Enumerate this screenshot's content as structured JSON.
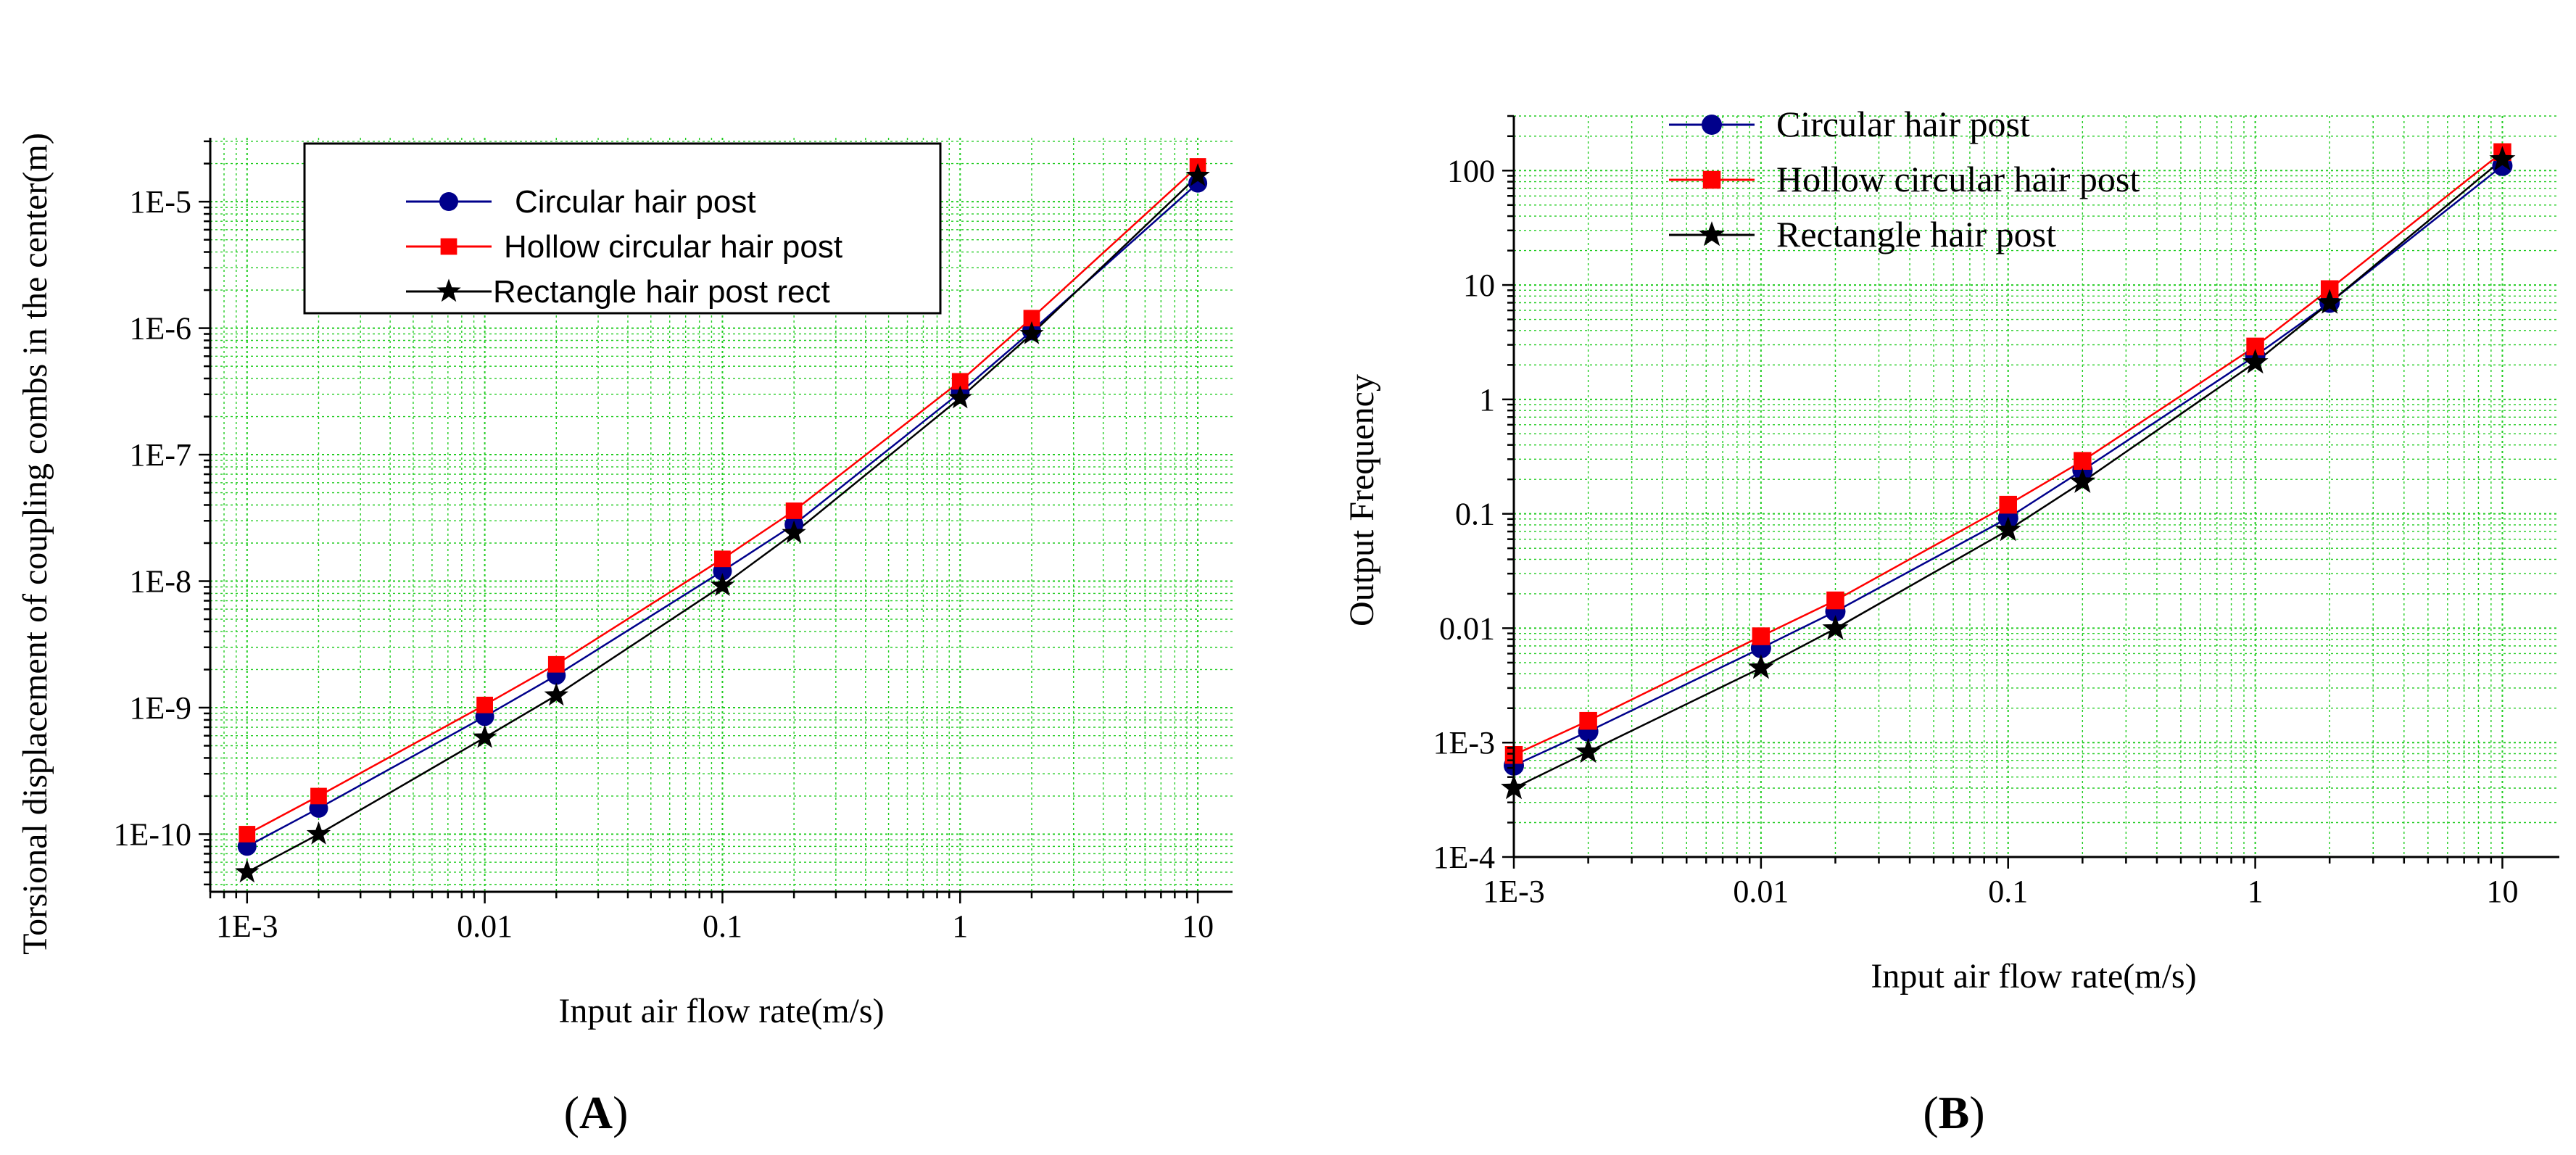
{
  "chart_data": [
    {
      "id": "A",
      "type": "line",
      "panel_label": "A",
      "xscale": "log",
      "yscale": "log",
      "xlabel": "Input air flow rate(m/s)",
      "ylabel": "Torsional displacement of coupling combs in the center(m)",
      "xlim": [
        0.0007,
        14
      ],
      "ylim": [
        3.5e-11,
        3.2e-05
      ],
      "grid": true,
      "legend_position": "top-left",
      "xticks": [
        0.001,
        0.01,
        0.1,
        1,
        10
      ],
      "xtick_labels": [
        "1E-3",
        "0.01",
        "0.1",
        "1",
        "10"
      ],
      "yticks": [
        1e-10,
        1e-09,
        1e-08,
        1e-07,
        1e-06,
        1e-05
      ],
      "ytick_labels": [
        "1E-10",
        "1E-9",
        "1E-8",
        "1E-7",
        "1E-6",
        "1E-5"
      ],
      "x": [
        0.001,
        0.002,
        0.01,
        0.02,
        0.1,
        0.2,
        1,
        2,
        10
      ],
      "series": [
        {
          "name": "Circular hair post",
          "color": "#00008b",
          "marker": "circle",
          "values": [
            8e-11,
            1.6e-10,
            8.5e-10,
            1.8e-09,
            1.2e-08,
            2.8e-08,
            3.1e-07,
            9.5e-07,
            1.4e-05
          ]
        },
        {
          "name": "Hollow circular hair post",
          "color": "#ff0000",
          "marker": "square",
          "values": [
            1e-10,
            2e-10,
            1.05e-09,
            2.2e-09,
            1.5e-08,
            3.6e-08,
            3.8e-07,
            1.2e-06,
            1.9e-05
          ]
        },
        {
          "name": "Rectangle hair post rect",
          "color": "#000000",
          "marker": "star",
          "values": [
            5e-11,
            1e-10,
            5.8e-10,
            1.25e-09,
            9.2e-09,
            2.4e-08,
            2.8e-07,
            9e-07,
            1.6e-05
          ]
        }
      ]
    },
    {
      "id": "B",
      "type": "line",
      "panel_label": "B",
      "xscale": "log",
      "yscale": "log",
      "xlabel": "Input air flow rate(m/s)",
      "ylabel": "Output Frequency",
      "xlim": [
        0.001,
        17
      ],
      "ylim": [
        0.0001,
        300
      ],
      "grid": true,
      "legend_position": "top-left",
      "xticks": [
        0.001,
        0.01,
        0.1,
        1,
        10
      ],
      "xtick_labels": [
        "1E-3",
        "0.01",
        "0.1",
        "1",
        "10"
      ],
      "yticks": [
        0.0001,
        0.001,
        0.01,
        0.1,
        1,
        10,
        100
      ],
      "ytick_labels": [
        "1E-4",
        "1E-3",
        "0.01",
        "0.1",
        "1",
        "10",
        "100"
      ],
      "x": [
        0.001,
        0.002,
        0.01,
        0.02,
        0.1,
        0.2,
        1,
        2,
        10
      ],
      "series": [
        {
          "name": "Circular hair post",
          "color": "#00008b",
          "marker": "circle",
          "values": [
            0.00063,
            0.00125,
            0.0067,
            0.014,
            0.092,
            0.24,
            2.4,
            7,
            110
          ]
        },
        {
          "name": "Hollow circular hair post",
          "color": "#ff0000",
          "marker": "square",
          "values": [
            0.00078,
            0.00155,
            0.0085,
            0.0175,
            0.12,
            0.29,
            2.9,
            9.2,
            145
          ]
        },
        {
          "name": "Rectangle hair post",
          "color": "#000000",
          "marker": "star",
          "values": [
            0.0004,
            0.00083,
            0.0045,
            0.0099,
            0.072,
            0.19,
            2.1,
            7,
            125
          ]
        }
      ]
    }
  ]
}
